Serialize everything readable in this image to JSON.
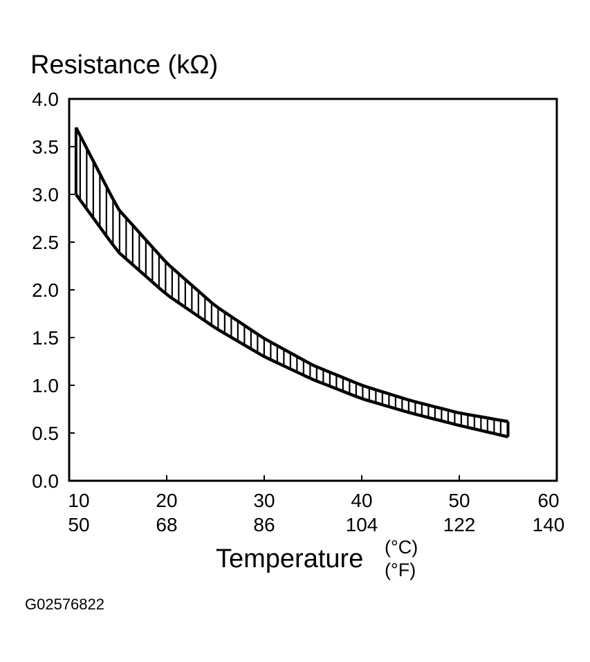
{
  "chart_data": {
    "type": "area",
    "title": "",
    "ylabel": "Resistance (kΩ)",
    "xlabel": "Temperature",
    "xunits": [
      "(°C)",
      "(°F)"
    ],
    "xlim": [
      10,
      60
    ],
    "ylim": [
      0,
      4.0
    ],
    "x_ticks": [
      {
        "c": "10",
        "f": "50"
      },
      {
        "c": "20",
        "f": "68"
      },
      {
        "c": "30",
        "f": "86"
      },
      {
        "c": "40",
        "f": "104"
      },
      {
        "c": "50",
        "f": "122"
      },
      {
        "c": "60",
        "f": "140"
      }
    ],
    "y_ticks": [
      "0.0",
      "0.5",
      "1.0",
      "1.5",
      "2.0",
      "2.5",
      "3.0",
      "3.5",
      "4.0"
    ],
    "grid": false,
    "legend": "none",
    "series": [
      {
        "x": [
          10.7,
          15,
          20,
          25,
          30,
          35,
          40,
          45,
          50,
          55
        ],
        "upper": [
          3.7,
          2.85,
          2.28,
          1.83,
          1.49,
          1.21,
          1.0,
          0.84,
          0.71,
          0.62
        ],
        "lower": [
          3.0,
          2.4,
          1.95,
          1.6,
          1.3,
          1.06,
          0.86,
          0.71,
          0.58,
          0.46
        ]
      }
    ]
  },
  "figure_code": "G02576822"
}
